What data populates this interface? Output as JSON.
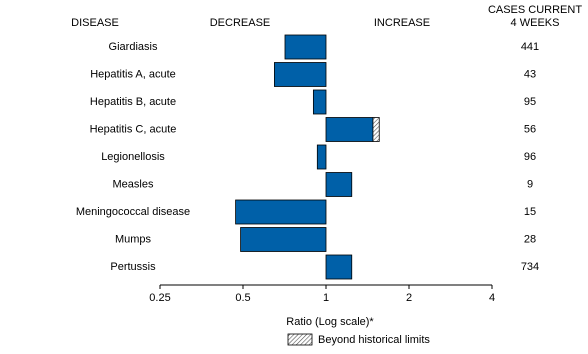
{
  "chart_data": {
    "type": "bar",
    "orientation": "horizontal",
    "log_scale": true,
    "headers": {
      "category": "DISEASE",
      "decrease": "DECREASE",
      "increase": "INCREASE",
      "cases": [
        "CASES CURRENT",
        "4 WEEKS"
      ]
    },
    "categories": [
      "Giardiasis",
      "Hepatitis A, acute",
      "Hepatitis B, acute",
      "Hepatitis C, acute",
      "Legionellosis",
      "Measles",
      "Meningococcal disease",
      "Mumps",
      "Pertussis"
    ],
    "values": [
      0.71,
      0.65,
      0.9,
      1.56,
      0.93,
      1.24,
      0.47,
      0.49,
      1.24
    ],
    "color": "#0060a8",
    "series": [
      {
        "name": "Beyond historical limits",
        "values": [
          null,
          null,
          null,
          1.48,
          null,
          null,
          null,
          null,
          null
        ]
      }
    ],
    "cases": [
      441,
      43,
      95,
      56,
      96,
      9,
      15,
      28,
      734
    ],
    "xlabel": "Ratio (Log scale)*",
    "xlim": [
      0.25,
      4
    ],
    "xticks": [
      0.25,
      0.5,
      1,
      2,
      4
    ]
  }
}
